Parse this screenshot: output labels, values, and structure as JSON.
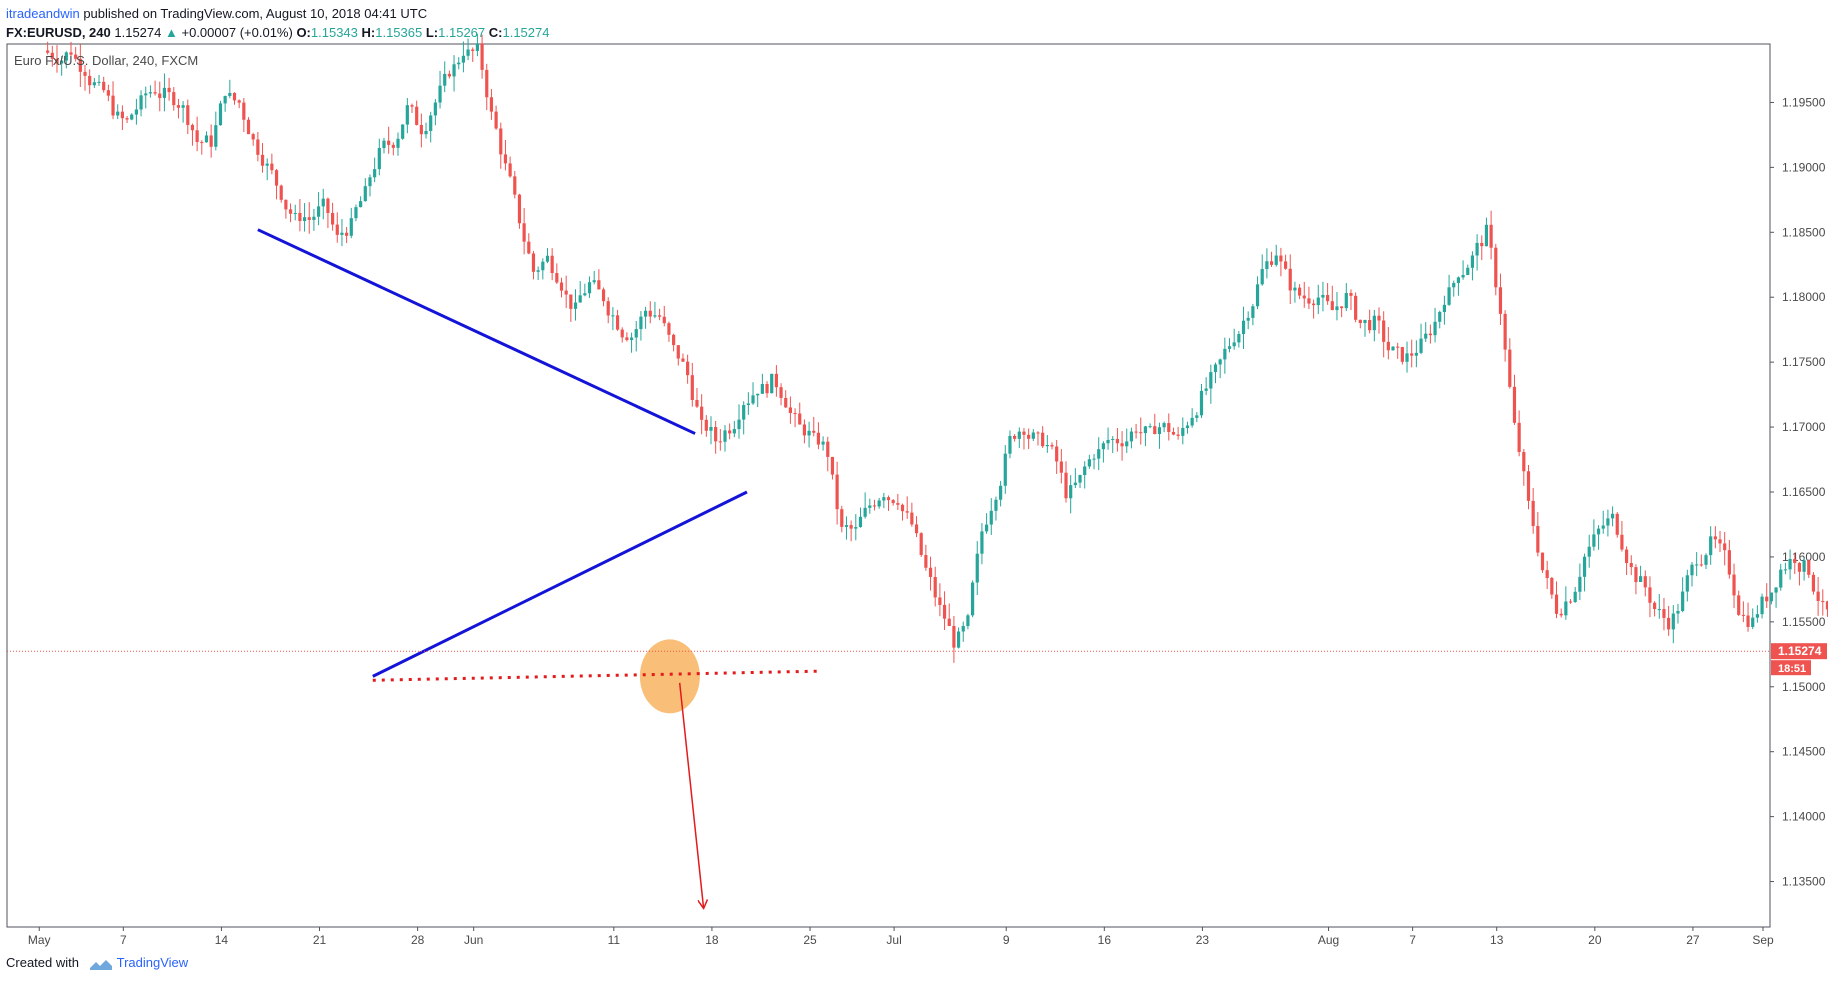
{
  "header": {
    "line1": {
      "user": "itradeandwin",
      "rest": " published on TradingView.com, August 10, 2018 04:41 UTC"
    },
    "line2": {
      "symbol": "FX:EURUSD, 240",
      "last": "1.15274",
      "change_arrow": "▲",
      "change": "+0.00007 (+0.01%)",
      "o_label": "O:",
      "o": "1.15343",
      "h_label": "H:",
      "h": "1.15365",
      "l_label": "L:",
      "l": "1.15267",
      "c_label": "C:",
      "c": "1.15274"
    }
  },
  "footer": {
    "created_with": "Created with",
    "brand": "TradingView"
  },
  "chart_data": {
    "type": "candlestick",
    "title": "Euro Fx/U.S. Dollar, 240, FXCM",
    "instrument": "EURUSD",
    "timeframe": "240",
    "ylim": [
      1.1315,
      1.1995
    ],
    "y_ticks": [
      "1.19500",
      "1.19000",
      "1.18500",
      "1.18000",
      "1.17500",
      "1.17000",
      "1.16500",
      "1.16000",
      "1.15500",
      "1.15000",
      "1.14500",
      "1.14000",
      "1.13500"
    ],
    "x_ticks": [
      "May",
      "7",
      "14",
      "21",
      "28",
      "Jun",
      "11",
      "18",
      "25",
      "Jul",
      "9",
      "16",
      "23",
      "Aug",
      "7",
      "13",
      "20",
      "27",
      "Sep"
    ],
    "x_tick_days": [
      0,
      6,
      13,
      20,
      27,
      31,
      41,
      48,
      55,
      61,
      69,
      76,
      83,
      92,
      98,
      104,
      111,
      118,
      123
    ],
    "x_range_days": [
      -2.3,
      123.5
    ],
    "last_price": {
      "label": "1.15274",
      "value": 1.15274,
      "countdown": "18:51",
      "color": "#ef5350"
    },
    "candle_series": {
      "start_day": 0.6,
      "bars_per_day": 6,
      "closes": [
        1.1985,
        1.199,
        1.1975,
        1.196,
        1.1945,
        1.1935,
        1.195,
        1.196,
        1.1955,
        1.1945,
        1.192,
        1.192,
        1.196,
        1.195,
        1.192,
        1.19,
        1.188,
        1.186,
        1.186,
        1.187,
        1.1845,
        1.1855,
        1.188,
        1.191,
        1.192,
        1.1945,
        1.193,
        1.195,
        1.1975,
        1.199,
        1.199,
        1.194,
        1.19,
        1.186,
        1.182,
        1.183,
        1.181,
        1.179,
        1.181,
        1.18,
        1.178,
        1.177,
        1.179,
        1.1785,
        1.176,
        1.174,
        1.17,
        1.169,
        1.17,
        1.172,
        1.173,
        1.1735,
        1.172,
        1.17,
        1.169,
        1.168,
        1.162,
        1.162,
        1.164,
        1.165,
        1.1645,
        1.1625,
        1.159,
        1.156,
        1.1535,
        1.155,
        1.162,
        1.165,
        1.169,
        1.17,
        1.169,
        1.168,
        1.165,
        1.166,
        1.168,
        1.169,
        1.169,
        1.17,
        1.1695,
        1.17,
        1.169,
        1.171,
        1.173,
        1.175,
        1.177,
        1.179,
        1.182,
        1.1835,
        1.181,
        1.18,
        1.18,
        1.179,
        1.18,
        1.178,
        1.178,
        1.176,
        1.1755,
        1.176,
        1.1775,
        1.18,
        1.182,
        1.183,
        1.185,
        1.179,
        1.17,
        1.164,
        1.159,
        1.156,
        1.157,
        1.16,
        1.162,
        1.163,
        1.16,
        1.158,
        1.156,
        1.155,
        1.157,
        1.16,
        1.161,
        1.16,
        1.156,
        1.155,
        1.157,
        1.159,
        1.16,
        1.159,
        1.156,
        1.154,
        1.153,
        1.158,
        1.162,
        1.164,
        1.167,
        1.169,
        1.171,
        1.17,
        1.167,
        1.166,
        1.165,
        1.164,
        1.16,
        1.159,
        1.156,
        1.155,
        1.156,
        1.157,
        1.16,
        1.166,
        1.169,
        1.166,
        1.164,
        1.164,
        1.164,
        1.165,
        1.166,
        1.167,
        1.166,
        1.167,
        1.17,
        1.172,
        1.17,
        1.171,
        1.175,
        1.176,
        1.175,
        1.174,
        1.176,
        1.174,
        1.17,
        1.168,
        1.169,
        1.168,
        1.166,
        1.166,
        1.164,
        1.163,
        1.168,
        1.17,
        1.17,
        1.172,
        1.173,
        1.174,
        1.171,
        1.168,
        1.165,
        1.164,
        1.163,
        1.162,
        1.162,
        1.161,
        1.159,
        1.163,
        1.167,
        1.169,
        1.172,
        1.174,
        1.1745,
        1.173,
        1.171,
        1.17,
        1.169,
        1.169,
        1.168,
        1.17,
        1.172,
        1.173,
        1.174,
        1.172,
        1.169,
        1.166,
        1.164,
        1.163,
        1.165,
        1.166,
        1.166,
        1.168,
        1.17,
        1.171,
        1.172,
        1.171,
        1.169,
        1.168,
        1.167,
        1.166,
        1.164,
        1.162,
        1.161,
        1.16,
        1.159,
        1.1585,
        1.157,
        1.1565,
        1.1555,
        1.155,
        1.1555,
        1.156,
        1.1555,
        1.158,
        1.159,
        1.16,
        1.161,
        1.162,
        1.16,
        1.161,
        1.1605,
        1.158,
        1.156,
        1.154,
        1.153,
        1.1527
      ]
    },
    "trendlines": [
      {
        "name": "upper",
        "from": [
          15.6,
          1.1852
        ],
        "to": [
          46.8,
          1.1695
        ],
        "color": "#1414d9",
        "style": "solid"
      },
      {
        "name": "lower",
        "from": [
          23.8,
          1.1508
        ],
        "to": [
          50.5,
          1.165
        ],
        "color": "#1414d9",
        "style": "solid"
      },
      {
        "name": "support",
        "from": [
          23.8,
          1.1505
        ],
        "to": [
          55.5,
          1.1512
        ],
        "color": "#e21b1b",
        "style": "dotted"
      },
      {
        "name": "projection",
        "from": [
          45.7,
          1.1503
        ],
        "to": [
          47.4,
          1.133
        ],
        "color": "#e21b1b",
        "style": "arrow"
      }
    ],
    "highlight": {
      "center": [
        45.0,
        1.1508
      ],
      "color": "#f7a84a"
    },
    "colors": {
      "up": "#26a69a",
      "down": "#ef5350",
      "grid": "#e1e3ea",
      "axis_text": "#4a4a4a"
    }
  }
}
